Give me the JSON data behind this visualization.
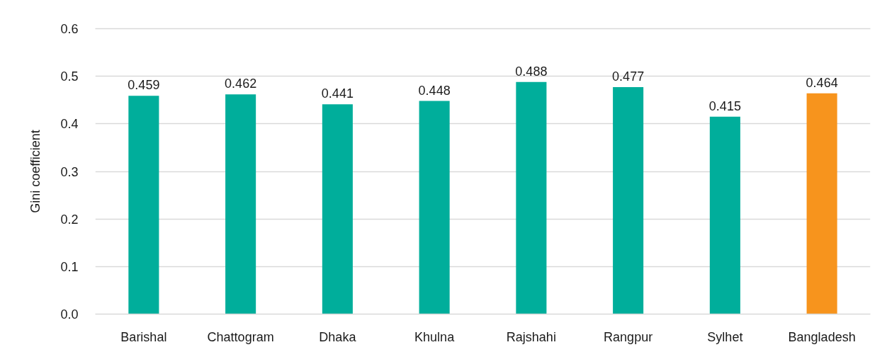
{
  "chart_data": {
    "type": "bar",
    "ylabel": "Gini coefficient",
    "categories": [
      "Barishal",
      "Chattogram",
      "Dhaka",
      "Khulna",
      "Rajshahi",
      "Rangpur",
      "Sylhet",
      "Bangladesh"
    ],
    "values": [
      0.459,
      0.462,
      0.441,
      0.448,
      0.488,
      0.477,
      0.415,
      0.464
    ],
    "colors": [
      "#00ae9b",
      "#00ae9b",
      "#00ae9b",
      "#00ae9b",
      "#00ae9b",
      "#00ae9b",
      "#00ae9b",
      "#f7941d"
    ],
    "ylim": [
      0,
      0.6
    ],
    "yticks": [
      {
        "value": 0,
        "label": "0.0"
      },
      0.1,
      0.2,
      0.3,
      0.4,
      0.5,
      0.6
    ],
    "grid": "y",
    "data_labels": true
  }
}
